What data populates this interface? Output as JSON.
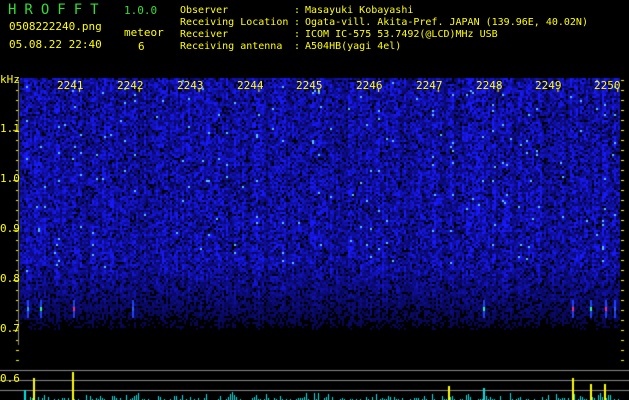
{
  "header": {
    "app_title": "HROFFT",
    "app_version": "1.0.0",
    "filename": "0508222240.png",
    "datetime": "05.08.22 22:40",
    "meteor_label": "meteor",
    "meteor_count": "6"
  },
  "info": [
    {
      "label": "Observer",
      "value": "Masayuki Kobayashi"
    },
    {
      "label": "Receiving Location",
      "value": "Ogata-vill. Akita-Pref. JAPAN (139.96E, 40.02N)"
    },
    {
      "label": "Receiver",
      "value": "ICOM IC-575 53.7492(@LCD)MHz USB"
    },
    {
      "label": "Receiving antenna",
      "value": "A504HB(yagi 4el)"
    }
  ],
  "spectrogram": {
    "y_unit": "kHz",
    "y_ticks": [
      "1.1",
      "1.0",
      "0.9",
      "0.8",
      "0.7",
      "0.6"
    ],
    "time_ticks": [
      "2241",
      "2242",
      "2243",
      "2244",
      "2245",
      "2246",
      "2247",
      "2248",
      "2249",
      "2250"
    ],
    "colors": {
      "text": "#ffff00",
      "title": "#33dd33",
      "noise": "#1a1aff",
      "bars_low": "#00e5e5",
      "bars_high": "#ffff00",
      "gridline": "#888888"
    }
  }
}
